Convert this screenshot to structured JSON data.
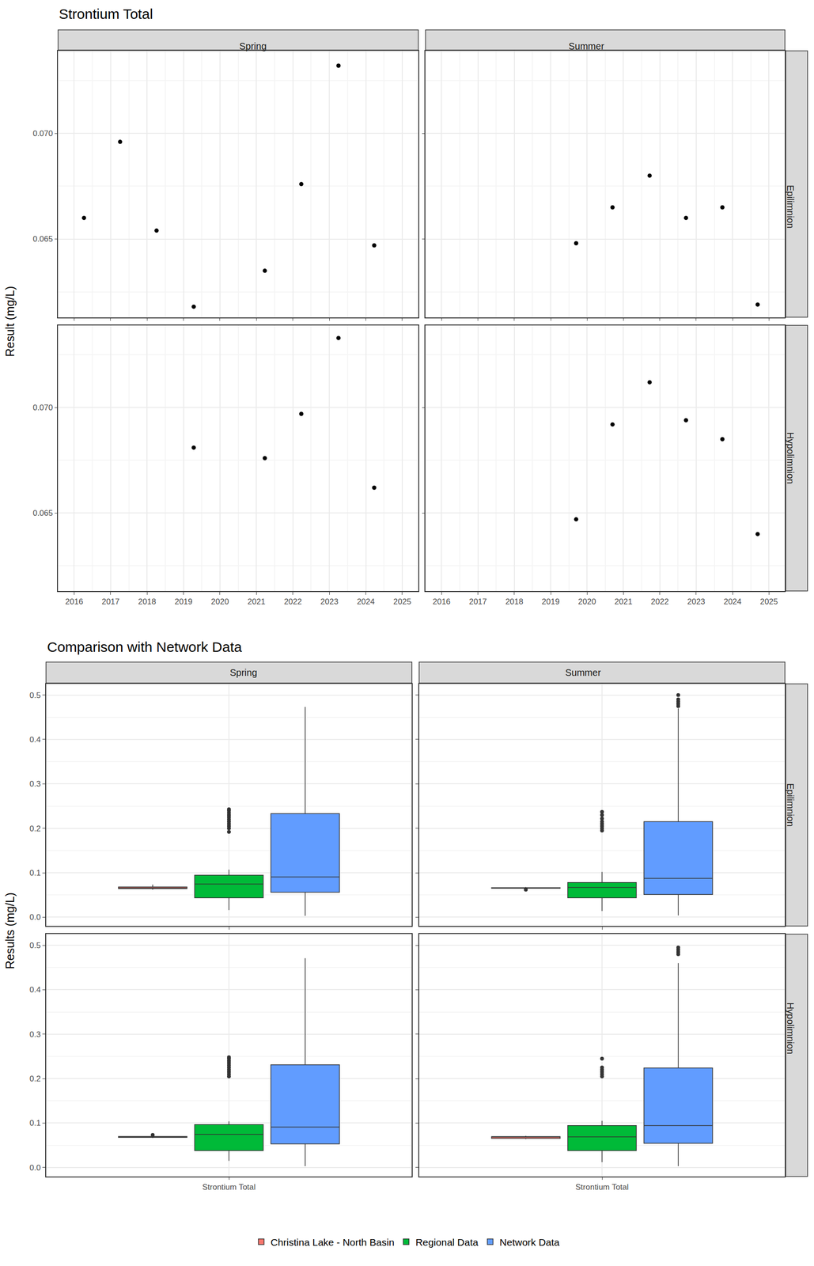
{
  "chart_data": [
    {
      "type": "scatter",
      "title": "Strontium Total",
      "y_label": "Result (mg/L)",
      "columns": [
        "Spring",
        "Summer"
      ],
      "rows": [
        "Epilimnion",
        "Hypolimnion"
      ],
      "xlim": [
        2015.56,
        2025.44
      ],
      "xticks": [
        2016,
        2017,
        2018,
        2019,
        2020,
        2021,
        2022,
        2023,
        2024,
        2025
      ],
      "ylim": [
        0.0613,
        0.0739
      ],
      "yticks": [
        {
          "value": 0.065,
          "label": "0.065"
        },
        {
          "value": 0.07,
          "label": "0.070"
        }
      ],
      "grid": true,
      "color": "#000000",
      "marker": "circle",
      "panels": [
        {
          "column": "Spring",
          "row": "Epilimnion",
          "x": [
            2016.27,
            2017.26,
            2018.26,
            2019.28,
            2021.23,
            2022.23,
            2023.25,
            2024.23
          ],
          "values": [
            0.066,
            0.0696,
            0.0654,
            0.0618,
            0.0635,
            0.0676,
            0.0732,
            0.0647
          ]
        },
        {
          "column": "Summer",
          "row": "Epilimnion",
          "x": [
            2019.7,
            2020.7,
            2021.72,
            2022.72,
            2023.72,
            2024.69
          ],
          "values": [
            0.0648,
            0.0665,
            0.068,
            0.066,
            0.0665,
            0.0619
          ]
        },
        {
          "column": "Spring",
          "row": "Hypolimnion",
          "x": [
            2019.28,
            2021.23,
            2022.23,
            2023.25,
            2024.23
          ],
          "values": [
            0.0681,
            0.0676,
            0.0697,
            0.0733,
            0.0662
          ]
        },
        {
          "column": "Summer",
          "row": "Hypolimnion",
          "x": [
            2019.7,
            2020.7,
            2021.72,
            2022.72,
            2023.72,
            2024.69
          ],
          "values": [
            0.0647,
            0.0692,
            0.0712,
            0.0694,
            0.0685,
            0.064
          ]
        }
      ]
    },
    {
      "type": "box",
      "title": "Comparison with Network Data",
      "y_label": "Results (mg/L)",
      "columns": [
        "Spring",
        "Summer"
      ],
      "rows": [
        "Epilimnion",
        "Hypolimnion"
      ],
      "categories": [
        "Strontium Total"
      ],
      "ylim": [
        -0.02,
        0.525
      ],
      "yticks": [
        {
          "value": 0,
          "label": "0.0"
        },
        0.1,
        0.2,
        0.3,
        0.4,
        0.5
      ],
      "grid": true,
      "legend": "bottom",
      "series": [
        {
          "name": "Christina Lake - North Basin",
          "color": "#F8766D"
        },
        {
          "name": "Regional Data",
          "color": "#00BA38"
        },
        {
          "name": "Network Data",
          "color": "#619CFF"
        }
      ],
      "panels": [
        {
          "column": "Spring",
          "row": "Epilimnion",
          "boxes": [
            {
              "name": "Christina Lake - North Basin",
              "q1": 0.0644,
              "median": 0.0657,
              "q3": 0.0681,
              "lowerfence": 0.0618,
              "upperfence": 0.0732,
              "outliers": []
            },
            {
              "name": "Regional Data",
              "q1": 0.0436,
              "median": 0.0745,
              "q3": 0.0945,
              "lowerfence": 0.016,
              "upperfence": 0.107,
              "outliers": [
                0.192,
                0.2,
                0.205,
                0.21,
                0.215,
                0.22,
                0.225,
                0.23,
                0.235,
                0.24,
                0.243
              ]
            },
            {
              "name": "Network Data",
              "q1": 0.056,
              "median": 0.0905,
              "q3": 0.233,
              "lowerfence": 0.003,
              "upperfence": 0.473,
              "outliers": []
            }
          ]
        },
        {
          "column": "Summer",
          "row": "Epilimnion",
          "boxes": [
            {
              "name": "Christina Lake - North Basin",
              "q1": 0.0651,
              "median": 0.0663,
              "q3": 0.0665,
              "lowerfence": 0.0648,
              "upperfence": 0.068,
              "outliers": [
                0.0619
              ]
            },
            {
              "name": "Regional Data",
              "q1": 0.0436,
              "median": 0.067,
              "q3": 0.078,
              "lowerfence": 0.014,
              "upperfence": 0.102,
              "outliers": [
                0.195,
                0.2,
                0.205,
                0.21,
                0.215,
                0.222,
                0.23,
                0.237
              ]
            },
            {
              "name": "Network Data",
              "q1": 0.051,
              "median": 0.0873,
              "q3": 0.215,
              "lowerfence": 0.004,
              "upperfence": 0.47,
              "outliers": [
                0.475,
                0.48,
                0.485,
                0.49,
                0.5
              ]
            }
          ]
        },
        {
          "column": "Spring",
          "row": "Hypolimnion",
          "boxes": [
            {
              "name": "Christina Lake - North Basin",
              "q1": 0.0676,
              "median": 0.0681,
              "q3": 0.0697,
              "lowerfence": 0.0662,
              "upperfence": 0.0697,
              "outliers": [
                0.0733
              ]
            },
            {
              "name": "Regional Data",
              "q1": 0.038,
              "median": 0.0745,
              "q3": 0.0964,
              "lowerfence": 0.015,
              "upperfence": 0.104,
              "outliers": [
                0.205,
                0.21,
                0.215,
                0.22,
                0.225,
                0.23,
                0.235,
                0.24,
                0.245,
                0.248
              ]
            },
            {
              "name": "Network Data",
              "q1": 0.053,
              "median": 0.091,
              "q3": 0.231,
              "lowerfence": 0.003,
              "upperfence": 0.471,
              "outliers": []
            }
          ]
        },
        {
          "column": "Summer",
          "row": "Hypolimnion",
          "boxes": [
            {
              "name": "Christina Lake - North Basin",
              "q1": 0.0656,
              "median": 0.0689,
              "q3": 0.0694,
              "lowerfence": 0.064,
              "upperfence": 0.0712,
              "outliers": []
            },
            {
              "name": "Regional Data",
              "q1": 0.038,
              "median": 0.069,
              "q3": 0.0945,
              "lowerfence": 0.012,
              "upperfence": 0.105,
              "outliers": [
                0.205,
                0.21,
                0.215,
                0.22,
                0.225,
                0.245
              ]
            },
            {
              "name": "Network Data",
              "q1": 0.0545,
              "median": 0.0945,
              "q3": 0.224,
              "lowerfence": 0.003,
              "upperfence": 0.46,
              "outliers": [
                0.48,
                0.485,
                0.49,
                0.495
              ]
            }
          ]
        }
      ]
    }
  ]
}
